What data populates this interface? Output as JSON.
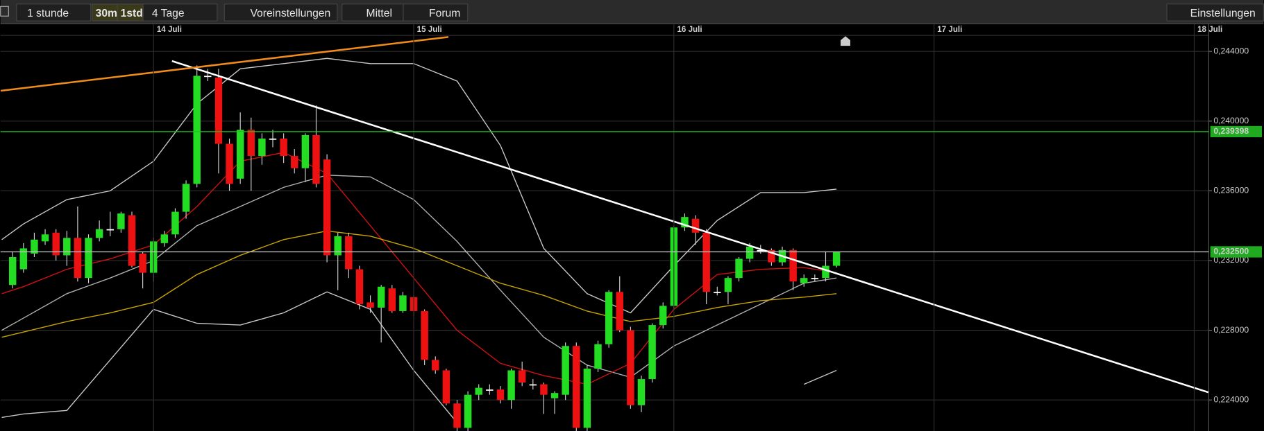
{
  "toolbar": {
    "items": [
      "1 stunde",
      "30m",
      "1std",
      "4 Tage",
      "Voreinstellungen",
      "Mittel",
      "Forum"
    ],
    "settings": "Einstellungen"
  },
  "chart_data": {
    "type": "candlestick",
    "x": [
      -13,
      -12,
      -11,
      -10,
      -9,
      -8,
      -7,
      -6,
      -5,
      -4,
      -3,
      -2,
      -1,
      0,
      1,
      2,
      3,
      4,
      5,
      6,
      7,
      8,
      9,
      10,
      11,
      12,
      13,
      14,
      15,
      16,
      17,
      18,
      19,
      20,
      21,
      22,
      23,
      24,
      25,
      26,
      27,
      28,
      29,
      30,
      31,
      32,
      33,
      34,
      35,
      36,
      37,
      38,
      39,
      40,
      41,
      42,
      43,
      44,
      45,
      46,
      47,
      48,
      49,
      50,
      51,
      52,
      53,
      54,
      55,
      56,
      57,
      58,
      59,
      60,
      61,
      62,
      63
    ],
    "open": [
      0.2306,
      0.2315,
      0.2324,
      0.2331,
      0.2336,
      0.2323,
      0.2333,
      0.231,
      0.2333,
      0.2338,
      0.2338,
      0.2346,
      0.2324,
      0.2313,
      0.233,
      0.2335,
      0.2348,
      0.2364,
      0.2426,
      0.2425,
      0.2387,
      0.2367,
      0.2395,
      0.238,
      0.239,
      0.239,
      0.238,
      0.2373,
      0.2392,
      0.2378,
      0.2323,
      0.2334,
      0.2315,
      0.2296,
      0.2293,
      0.2304,
      0.2291,
      0.2299,
      0.2291,
      0.2263,
      0.2257,
      0.2238,
      0.2224,
      0.2243,
      0.2246,
      0.2246,
      0.224,
      0.2257,
      0.2249,
      0.2249,
      0.2241,
      0.2243,
      0.2271,
      0.2224,
      0.2258,
      0.2272,
      0.2302,
      0.228,
      0.2237,
      0.2252,
      0.2283,
      0.2294,
      0.2339,
      0.2344,
      0.2336,
      0.2302,
      0.2302,
      0.231,
      0.2321,
      0.2326,
      0.2326,
      0.2319,
      0.2326,
      0.2307,
      0.231,
      0.231,
      0.2317
    ],
    "high": [
      0.2325,
      0.233,
      0.2336,
      0.2338,
      0.2338,
      0.2337,
      0.2351,
      0.2335,
      0.2343,
      0.2348,
      0.2348,
      0.2348,
      0.2325,
      0.2333,
      0.2337,
      0.235,
      0.2366,
      0.2432,
      0.243,
      0.243,
      0.239,
      0.2405,
      0.2402,
      0.2393,
      0.2395,
      0.2393,
      0.2384,
      0.2393,
      0.2409,
      0.2381,
      0.2336,
      0.2336,
      0.2317,
      0.23,
      0.2306,
      0.2306,
      0.2302,
      0.23,
      0.2292,
      0.2265,
      0.2258,
      0.224,
      0.2245,
      0.2249,
      0.2249,
      0.2248,
      0.2258,
      0.2262,
      0.2252,
      0.225,
      0.2245,
      0.2273,
      0.2273,
      0.226,
      0.2274,
      0.2303,
      0.2311,
      0.2282,
      0.2254,
      0.2284,
      0.2296,
      0.234,
      0.2347,
      0.2346,
      0.2338,
      0.2305,
      0.2311,
      0.2322,
      0.233,
      0.2329,
      0.2327,
      0.2328,
      0.2327,
      0.2312,
      0.2312,
      0.2325,
      0.2325
    ],
    "low": [
      0.2304,
      0.2313,
      0.2322,
      0.2329,
      0.232,
      0.2317,
      0.2308,
      0.2307,
      0.2331,
      0.2334,
      0.2336,
      0.2316,
      0.2304,
      0.2308,
      0.2328,
      0.2333,
      0.2344,
      0.2362,
      0.2423,
      0.237,
      0.236,
      0.2364,
      0.236,
      0.2375,
      0.2385,
      0.2376,
      0.237,
      0.2365,
      0.2362,
      0.2319,
      0.2303,
      0.231,
      0.2292,
      0.229,
      0.2273,
      0.229,
      0.229,
      0.2288,
      0.226,
      0.2255,
      0.2237,
      0.2222,
      0.2222,
      0.224,
      0.2243,
      0.2238,
      0.2235,
      0.2248,
      0.2246,
      0.2232,
      0.2232,
      0.224,
      0.2222,
      0.2222,
      0.2256,
      0.227,
      0.2279,
      0.2235,
      0.2233,
      0.225,
      0.2281,
      0.2292,
      0.2337,
      0.2329,
      0.2295,
      0.23,
      0.2295,
      0.2308,
      0.2319,
      0.2324,
      0.2317,
      0.2317,
      0.2303,
      0.2305,
      0.2308,
      0.2308,
      0.2316
    ],
    "close": [
      0.2322,
      0.2327,
      0.2332,
      0.2335,
      0.2323,
      0.2333,
      0.231,
      0.2333,
      0.2338,
      0.2338,
      0.2347,
      0.2317,
      0.2313,
      0.2331,
      0.2335,
      0.2348,
      0.2364,
      0.2426,
      0.2426,
      0.2387,
      0.2364,
      0.2395,
      0.238,
      0.239,
      0.239,
      0.238,
      0.2373,
      0.2392,
      0.2364,
      0.2323,
      0.2334,
      0.2315,
      0.2295,
      0.2293,
      0.2305,
      0.2291,
      0.23,
      0.2291,
      0.2263,
      0.2257,
      0.2238,
      0.2224,
      0.2243,
      0.2247,
      0.2246,
      0.224,
      0.2257,
      0.225,
      0.2249,
      0.2243,
      0.2244,
      0.2271,
      0.2224,
      0.2258,
      0.2272,
      0.2302,
      0.228,
      0.2237,
      0.2252,
      0.2283,
      0.2294,
      0.2339,
      0.2345,
      0.2336,
      0.2302,
      0.2302,
      0.231,
      0.2321,
      0.2328,
      0.2326,
      0.2319,
      0.2326,
      0.2308,
      0.231,
      0.231,
      0.2317,
      0.2325
    ],
    "up_color": "#22dd22",
    "down_color": "#ee1111",
    "flat_color": "#ffffff",
    "indicators": {
      "x": [
        -14,
        -12,
        -8,
        -4,
        0,
        4,
        8,
        12,
        16,
        20,
        24,
        28,
        32,
        36,
        40,
        44,
        48,
        52,
        56,
        60,
        63
      ],
      "series": [
        {
          "color": "#c8c8c8",
          "values": [
            0.2332,
            0.2341,
            0.2355,
            0.236,
            0.2377,
            0.241,
            0.243,
            0.2433,
            0.2436,
            0.2433,
            0.2433,
            0.2423,
            0.2386,
            0.2327,
            0.2301,
            0.229,
            0.2317,
            0.2343,
            0.2359,
            0.2359,
            0.2361
          ]
        },
        {
          "color": "#b0b0b0",
          "values": [
            0.228,
            0.2287,
            0.2301,
            0.231,
            0.232,
            0.234,
            0.2351,
            0.2362,
            0.2369,
            0.2368,
            0.2355,
            0.2331,
            0.2303,
            0.2276,
            0.226,
            0.2253,
            0.2271,
            0.2283,
            0.2295,
            0.2307,
            0.231
          ]
        },
        {
          "color": "#c8c8c8",
          "values": [
            0.223,
            0.2232,
            0.2234,
            0.2263,
            0.2292,
            0.2284,
            0.2283,
            0.229,
            0.2302,
            0.2292,
            0.2257,
            0.2227,
            null,
            null,
            null,
            null,
            null,
            null,
            null,
            0.2249,
            0.2257
          ]
        },
        {
          "color": "#d01010",
          "values": [
            0.2301,
            0.2305,
            0.2315,
            0.2321,
            0.2329,
            0.2351,
            0.2377,
            0.2382,
            0.237,
            0.234,
            0.231,
            0.228,
            0.2261,
            0.2254,
            0.2249,
            0.2261,
            0.2292,
            0.2312,
            0.2315,
            0.2316,
            0.2313
          ]
        },
        {
          "color": "#c8a400",
          "values": [
            0.2276,
            0.2279,
            0.2285,
            0.229,
            0.2296,
            0.2312,
            0.2323,
            0.2332,
            0.2337,
            0.2334,
            0.2327,
            0.2317,
            0.2307,
            0.23,
            0.2291,
            0.2285,
            0.2288,
            0.2293,
            0.2297,
            0.2299,
            0.2301
          ]
        }
      ]
    },
    "trendlines": [
      {
        "color": "#ffffff",
        "x": [
          1.7,
          97.3
        ],
        "values": [
          0.24345,
          0.22444
        ]
      },
      {
        "color": "#f08c1a",
        "x": [
          -14.1,
          27.2
        ],
        "values": [
          0.24174,
          0.24483
        ]
      }
    ],
    "hlines": [
      {
        "value": 0.239398,
        "label": "0,239398",
        "color": "#1fbf1f"
      },
      {
        "value": 0.2325,
        "label": "0,232500",
        "color": "#c0c0c0"
      }
    ],
    "xlim": [
      -14.12,
      97.34
    ],
    "ylim": [
      0.22222,
      0.24492
    ],
    "xticks": [
      {
        "value": 0,
        "label": "14 Juli"
      },
      {
        "value": 24,
        "label": "15 Juli"
      },
      {
        "value": 48,
        "label": "16 Juli"
      },
      {
        "value": 72,
        "label": "17 Juli"
      },
      {
        "value": 96,
        "label": "18 Juli"
      }
    ],
    "yticks": [
      {
        "value": 0.244,
        "label": "0,244000"
      },
      {
        "value": 0.24,
        "label": "0,240000"
      },
      {
        "value": 0.236,
        "label": "0,236000"
      },
      {
        "value": 0.232,
        "label": "0,232000"
      },
      {
        "value": 0.228,
        "label": "0,228000"
      },
      {
        "value": 0.224,
        "label": "0,224000"
      }
    ],
    "grid": true
  }
}
